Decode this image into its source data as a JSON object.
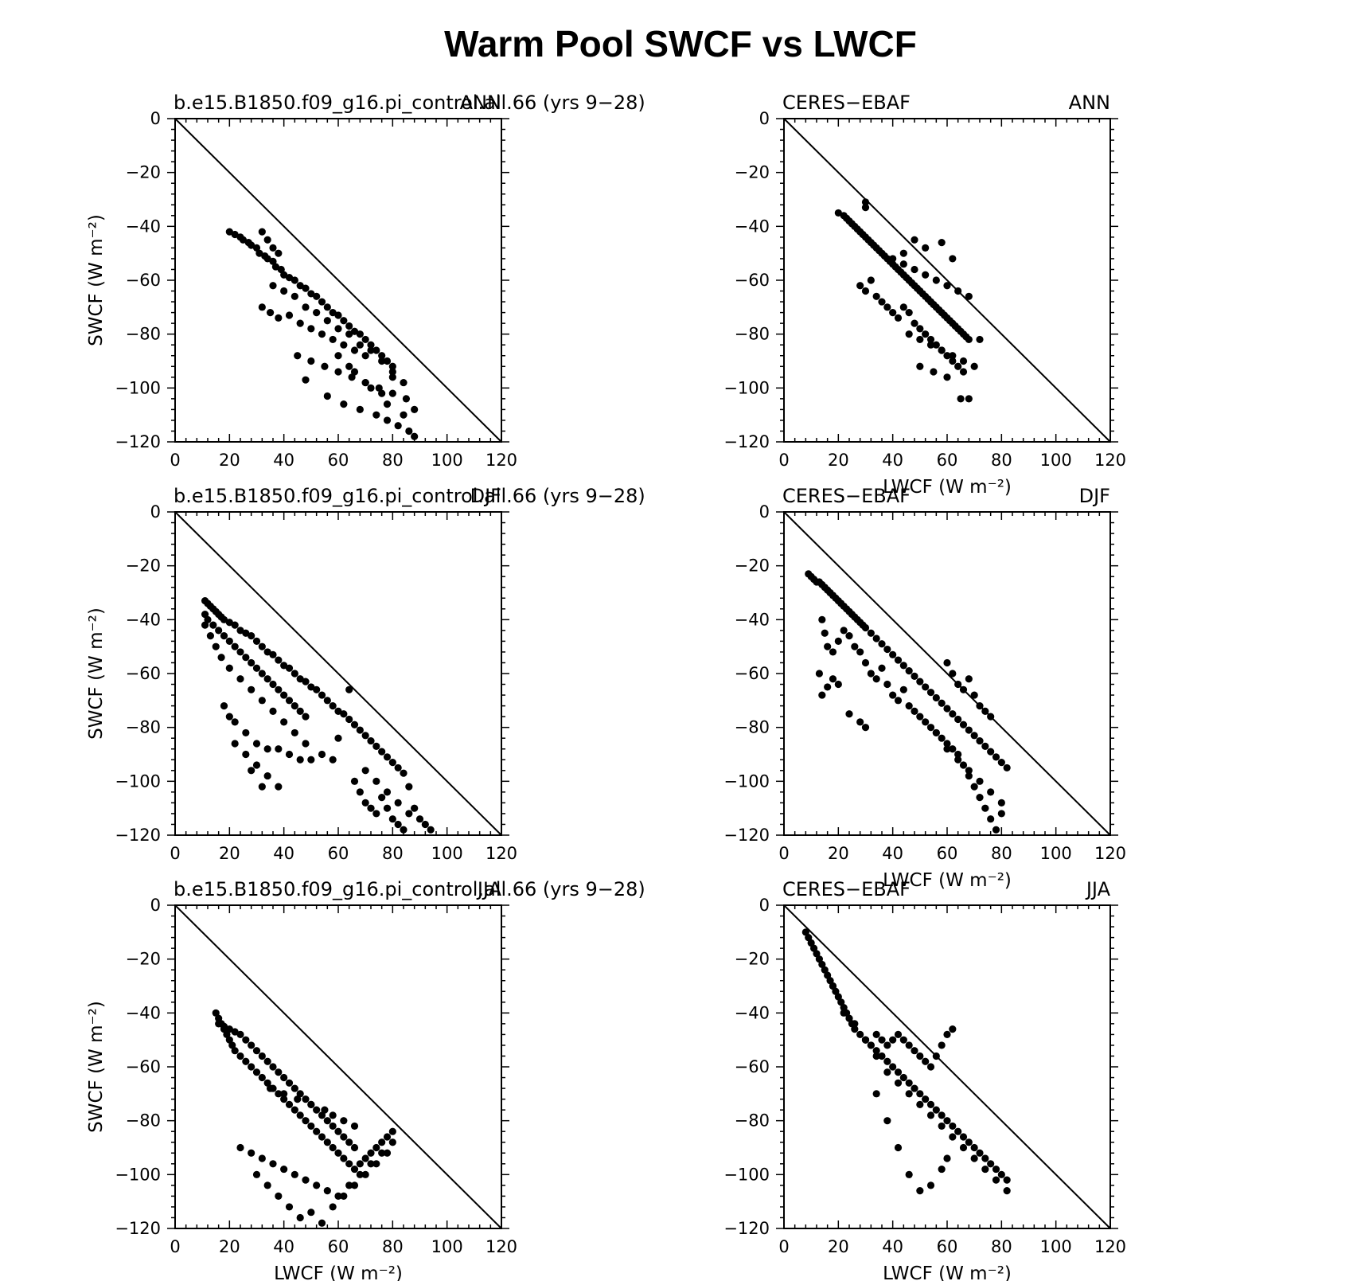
{
  "title": "Warm Pool SWCF vs LWCF",
  "colors": {
    "points": "#000000",
    "axes": "#000000",
    "background": "#ffffff"
  },
  "chart_data": [
    {
      "type": "scatter",
      "left_label": "b.e15.B1850.f09_g16.pi_control.all.66 (yrs 9−28)",
      "right_label": "ANN",
      "xlabel": "",
      "ylabel": "SWCF (W m⁻²)",
      "xlim": [
        0,
        120
      ],
      "ylim": [
        -120,
        0
      ],
      "xticks": [
        "0",
        "20",
        "40",
        "60",
        "80",
        "100",
        "120"
      ],
      "yticks": [
        "0",
        "−20",
        "−40",
        "−60",
        "−80",
        "−100",
        "−120"
      ],
      "reference_line": [
        [
          0,
          0
        ],
        [
          120,
          -120
        ]
      ],
      "x": [
        20,
        22,
        24,
        25,
        27,
        28,
        30,
        31,
        33,
        34,
        36,
        37,
        39,
        40,
        42,
        44,
        46,
        48,
        50,
        52,
        54,
        56,
        58,
        60,
        62,
        64,
        66,
        68,
        70,
        72,
        74,
        76,
        78,
        80,
        32,
        35,
        38,
        42,
        46,
        50,
        54,
        58,
        62,
        66,
        70,
        36,
        40,
        44,
        48,
        52,
        56,
        60,
        64,
        68,
        72,
        76,
        80,
        84,
        45,
        50,
        55,
        60,
        65,
        70,
        75,
        80,
        85,
        88,
        48,
        56,
        62,
        68,
        74,
        78,
        82,
        86,
        88,
        64,
        70,
        76,
        80,
        84,
        32,
        34,
        36,
        38,
        60,
        66,
        72,
        78
      ],
      "y": [
        -42,
        -43,
        -44,
        -45,
        -46,
        -47,
        -48,
        -50,
        -51,
        -52,
        -53,
        -55,
        -56,
        -58,
        -59,
        -60,
        -62,
        -63,
        -65,
        -66,
        -68,
        -70,
        -72,
        -73,
        -75,
        -77,
        -79,
        -80,
        -82,
        -84,
        -86,
        -88,
        -90,
        -92,
        -70,
        -72,
        -74,
        -73,
        -76,
        -78,
        -80,
        -82,
        -84,
        -86,
        -88,
        -62,
        -64,
        -66,
        -70,
        -72,
        -75,
        -78,
        -80,
        -84,
        -86,
        -90,
        -94,
        -98,
        -88,
        -90,
        -92,
        -94,
        -96,
        -98,
        -100,
        -102,
        -104,
        -108,
        -97,
        -103,
        -106,
        -108,
        -110,
        -112,
        -114,
        -116,
        -118,
        -92,
        -98,
        -102,
        -96,
        -110,
        -42,
        -45,
        -48,
        -50,
        -88,
        -94,
        -100,
        -106
      ]
    },
    {
      "type": "scatter",
      "left_label": "CERES−EBAF",
      "right_label": "ANN",
      "xlabel": "LWCF (W m⁻²)",
      "ylabel": "",
      "xlim": [
        0,
        120
      ],
      "ylim": [
        -120,
        0
      ],
      "xticks": [
        "0",
        "20",
        "40",
        "60",
        "80",
        "100",
        "120"
      ],
      "yticks": [
        "0",
        "−20",
        "−40",
        "−60",
        "−80",
        "−100",
        "−120"
      ],
      "reference_line": [
        [
          0,
          0
        ],
        [
          120,
          -120
        ]
      ],
      "x": [
        20,
        22,
        23,
        24,
        25,
        26,
        27,
        28,
        29,
        30,
        31,
        32,
        33,
        34,
        35,
        36,
        37,
        38,
        39,
        40,
        41,
        42,
        43,
        44,
        45,
        46,
        47,
        48,
        49,
        50,
        51,
        52,
        53,
        54,
        55,
        56,
        57,
        58,
        59,
        60,
        61,
        62,
        63,
        64,
        65,
        66,
        67,
        68,
        30,
        30,
        32,
        28,
        30,
        34,
        36,
        38,
        40,
        42,
        44,
        46,
        48,
        50,
        52,
        54,
        56,
        58,
        60,
        62,
        64,
        66,
        40,
        44,
        48,
        52,
        56,
        60,
        64,
        68,
        46,
        50,
        54,
        58,
        62,
        66,
        70,
        72,
        50,
        55,
        60,
        65,
        68,
        58,
        62,
        52,
        48,
        44
      ],
      "y": [
        -35,
        -36,
        -37,
        -38,
        -39,
        -40,
        -41,
        -42,
        -43,
        -44,
        -45,
        -46,
        -47,
        -48,
        -49,
        -50,
        -51,
        -52,
        -53,
        -54,
        -55,
        -56,
        -57,
        -58,
        -59,
        -60,
        -61,
        -62,
        -63,
        -64,
        -65,
        -66,
        -67,
        -68,
        -69,
        -70,
        -71,
        -72,
        -73,
        -74,
        -75,
        -76,
        -77,
        -78,
        -79,
        -80,
        -81,
        -82,
        -31,
        -33,
        -60,
        -62,
        -64,
        -66,
        -68,
        -70,
        -72,
        -74,
        -70,
        -72,
        -76,
        -78,
        -80,
        -82,
        -84,
        -86,
        -88,
        -90,
        -92,
        -94,
        -52,
        -54,
        -56,
        -58,
        -60,
        -62,
        -64,
        -66,
        -80,
        -82,
        -84,
        -86,
        -88,
        -90,
        -92,
        -82,
        -92,
        -94,
        -96,
        -104,
        -104,
        -46,
        -52,
        -48,
        -45,
        -50
      ]
    },
    {
      "type": "scatter",
      "left_label": "b.e15.B1850.f09_g16.pi_control.all.66 (yrs 9−28)",
      "right_label": "DJF",
      "xlabel": "",
      "ylabel": "SWCF (W m⁻²)",
      "xlim": [
        0,
        120
      ],
      "ylim": [
        -120,
        0
      ],
      "xticks": [
        "0",
        "20",
        "40",
        "60",
        "80",
        "100",
        "120"
      ],
      "yticks": [
        "0",
        "−20",
        "−40",
        "−60",
        "−80",
        "−100",
        "−120"
      ],
      "reference_line": [
        [
          0,
          0
        ],
        [
          120,
          -120
        ]
      ],
      "x": [
        11,
        12,
        13,
        14,
        15,
        16,
        17,
        18,
        20,
        22,
        24,
        26,
        28,
        30,
        32,
        34,
        36,
        38,
        40,
        42,
        44,
        46,
        48,
        50,
        52,
        54,
        56,
        58,
        60,
        62,
        64,
        66,
        68,
        70,
        72,
        74,
        76,
        78,
        80,
        82,
        84,
        11,
        12,
        14,
        16,
        18,
        20,
        22,
        24,
        26,
        28,
        30,
        32,
        34,
        36,
        38,
        40,
        42,
        44,
        46,
        48,
        11,
        13,
        15,
        17,
        20,
        24,
        28,
        32,
        36,
        40,
        44,
        48,
        18,
        22,
        26,
        30,
        34,
        38,
        42,
        46,
        50,
        54,
        58,
        22,
        26,
        30,
        34,
        38,
        66,
        68,
        70,
        72,
        74,
        76,
        78,
        80,
        82,
        84,
        86,
        88,
        90,
        92,
        94,
        70,
        74,
        78,
        82,
        86,
        20,
        28,
        32,
        60,
        64
      ],
      "y": [
        -33,
        -34,
        -35,
        -36,
        -37,
        -38,
        -39,
        -40,
        -41,
        -42,
        -44,
        -45,
        -46,
        -48,
        -50,
        -52,
        -53,
        -55,
        -57,
        -58,
        -60,
        -62,
        -63,
        -65,
        -66,
        -68,
        -70,
        -72,
        -74,
        -75,
        -77,
        -79,
        -81,
        -83,
        -85,
        -87,
        -89,
        -91,
        -93,
        -95,
        -97,
        -38,
        -40,
        -42,
        -44,
        -46,
        -48,
        -50,
        -52,
        -54,
        -56,
        -58,
        -60,
        -62,
        -64,
        -66,
        -68,
        -70,
        -72,
        -74,
        -76,
        -42,
        -46,
        -50,
        -54,
        -58,
        -62,
        -66,
        -70,
        -74,
        -78,
        -82,
        -86,
        -72,
        -78,
        -82,
        -86,
        -88,
        -88,
        -90,
        -92,
        -92,
        -90,
        -92,
        -86,
        -90,
        -94,
        -98,
        -102,
        -100,
        -104,
        -108,
        -110,
        -112,
        -106,
        -110,
        -114,
        -116,
        -118,
        -112,
        -110,
        -114,
        -116,
        -118,
        -96,
        -100,
        -104,
        -108,
        -102,
        -76,
        -96,
        -102,
        -84,
        -66
      ]
    },
    {
      "type": "scatter",
      "left_label": "CERES−EBAF",
      "right_label": "DJF",
      "xlabel": "LWCF (W m⁻²)",
      "ylabel": "",
      "xlim": [
        0,
        120
      ],
      "ylim": [
        -120,
        0
      ],
      "xticks": [
        "0",
        "20",
        "40",
        "60",
        "80",
        "100",
        "120"
      ],
      "yticks": [
        "0",
        "−20",
        "−40",
        "−60",
        "−80",
        "−100",
        "−120"
      ],
      "reference_line": [
        [
          0,
          0
        ],
        [
          120,
          -120
        ]
      ],
      "x": [
        9,
        10,
        11,
        12,
        13,
        14,
        15,
        16,
        17,
        18,
        19,
        20,
        21,
        22,
        23,
        24,
        25,
        26,
        27,
        28,
        29,
        30,
        32,
        34,
        36,
        38,
        40,
        42,
        44,
        46,
        48,
        50,
        52,
        54,
        56,
        58,
        60,
        62,
        64,
        66,
        68,
        70,
        72,
        74,
        76,
        78,
        80,
        82,
        14,
        15,
        16,
        18,
        20,
        22,
        24,
        26,
        28,
        30,
        32,
        34,
        36,
        38,
        40,
        42,
        44,
        46,
        48,
        50,
        52,
        54,
        56,
        58,
        60,
        62,
        64,
        66,
        68,
        70,
        72,
        74,
        76,
        78,
        80,
        13,
        14,
        16,
        18,
        20,
        24,
        28,
        30,
        60,
        62,
        64,
        66,
        68,
        70,
        72,
        74,
        76,
        56,
        60,
        64,
        68,
        72,
        76,
        80
      ],
      "y": [
        -23,
        -24,
        -25,
        -26,
        -26,
        -27,
        -28,
        -29,
        -30,
        -31,
        -32,
        -33,
        -34,
        -35,
        -36,
        -37,
        -38,
        -39,
        -40,
        -41,
        -42,
        -43,
        -45,
        -47,
        -49,
        -51,
        -53,
        -55,
        -57,
        -59,
        -61,
        -63,
        -65,
        -67,
        -69,
        -71,
        -73,
        -75,
        -77,
        -79,
        -81,
        -83,
        -85,
        -87,
        -89,
        -91,
        -93,
        -95,
        -40,
        -45,
        -50,
        -52,
        -48,
        -44,
        -46,
        -50,
        -52,
        -56,
        -60,
        -62,
        -58,
        -64,
        -68,
        -70,
        -66,
        -72,
        -74,
        -76,
        -78,
        -80,
        -82,
        -84,
        -86,
        -88,
        -90,
        -94,
        -98,
        -102,
        -106,
        -110,
        -114,
        -118,
        -112,
        -60,
        -68,
        -65,
        -62,
        -64,
        -75,
        -78,
        -80,
        -56,
        -60,
        -64,
        -66,
        -62,
        -68,
        -72,
        -74,
        -76,
        -82,
        -88,
        -92,
        -96,
        -100,
        -104,
        -108
      ]
    },
    {
      "type": "scatter",
      "left_label": "b.e15.B1850.f09_g16.pi_control.all.66 (yrs 9−28)",
      "right_label": "JJA",
      "xlabel": "LWCF (W m⁻²)",
      "ylabel": "SWCF (W m⁻²)",
      "xlim": [
        0,
        120
      ],
      "ylim": [
        -120,
        0
      ],
      "xticks": [
        "0",
        "20",
        "40",
        "60",
        "80",
        "100",
        "120"
      ],
      "yticks": [
        "0",
        "−20",
        "−40",
        "−60",
        "−80",
        "−100",
        "−120"
      ],
      "reference_line": [
        [
          0,
          0
        ],
        [
          120,
          -120
        ]
      ],
      "x": [
        15,
        16,
        17,
        18,
        19,
        20,
        21,
        22,
        24,
        26,
        28,
        30,
        32,
        34,
        36,
        38,
        40,
        42,
        44,
        46,
        48,
        50,
        52,
        54,
        56,
        58,
        60,
        62,
        64,
        66,
        68,
        70,
        72,
        74,
        76,
        78,
        80,
        16,
        18,
        20,
        22,
        24,
        26,
        28,
        30,
        32,
        34,
        36,
        38,
        40,
        42,
        44,
        46,
        48,
        50,
        52,
        54,
        56,
        58,
        60,
        62,
        64,
        66,
        24,
        28,
        32,
        36,
        40,
        44,
        48,
        52,
        56,
        60,
        64,
        68,
        72,
        76,
        80,
        30,
        34,
        38,
        42,
        46,
        50,
        54,
        58,
        62,
        66,
        70,
        74,
        78,
        35,
        40,
        45,
        50,
        55,
        58,
        62,
        66
      ],
      "y": [
        -40,
        -42,
        -44,
        -46,
        -48,
        -50,
        -52,
        -54,
        -56,
        -58,
        -60,
        -62,
        -64,
        -66,
        -68,
        -70,
        -72,
        -74,
        -76,
        -78,
        -80,
        -82,
        -84,
        -86,
        -88,
        -90,
        -92,
        -94,
        -96,
        -98,
        -96,
        -94,
        -92,
        -90,
        -88,
        -86,
        -84,
        -44,
        -45,
        -46,
        -47,
        -48,
        -50,
        -52,
        -54,
        -56,
        -58,
        -60,
        -62,
        -64,
        -66,
        -68,
        -70,
        -72,
        -74,
        -76,
        -78,
        -80,
        -82,
        -84,
        -86,
        -88,
        -90,
        -90,
        -92,
        -94,
        -96,
        -98,
        -100,
        -102,
        -104,
        -106,
        -108,
        -104,
        -100,
        -96,
        -92,
        -88,
        -100,
        -104,
        -108,
        -112,
        -116,
        -114,
        -118,
        -112,
        -108,
        -104,
        -100,
        -96,
        -92,
        -68,
        -70,
        -72,
        -74,
        -76,
        -78,
        -80,
        -82
      ]
    },
    {
      "type": "scatter",
      "left_label": "CERES−EBAF",
      "right_label": "JJA",
      "xlabel": "LWCF (W m⁻²)",
      "ylabel": "",
      "xlim": [
        0,
        120
      ],
      "ylim": [
        -120,
        0
      ],
      "xticks": [
        "0",
        "20",
        "40",
        "60",
        "80",
        "100",
        "120"
      ],
      "yticks": [
        "0",
        "−20",
        "−40",
        "−60",
        "−80",
        "−100",
        "−120"
      ],
      "reference_line": [
        [
          0,
          0
        ],
        [
          120,
          -120
        ]
      ],
      "x": [
        8,
        9,
        10,
        11,
        12,
        13,
        14,
        15,
        16,
        17,
        18,
        19,
        20,
        21,
        22,
        23,
        24,
        25,
        26,
        28,
        30,
        32,
        34,
        36,
        38,
        40,
        42,
        44,
        46,
        48,
        50,
        52,
        54,
        56,
        58,
        60,
        62,
        64,
        66,
        68,
        70,
        72,
        74,
        76,
        78,
        80,
        82,
        30,
        32,
        34,
        36,
        38,
        40,
        42,
        44,
        46,
        48,
        50,
        52,
        54,
        56,
        58,
        60,
        62,
        18,
        22,
        26,
        30,
        34,
        38,
        42,
        46,
        50,
        54,
        58,
        62,
        66,
        70,
        74,
        78,
        82,
        34,
        38,
        42,
        46,
        50,
        54,
        58,
        60
      ],
      "y": [
        -10,
        -12,
        -14,
        -16,
        -18,
        -20,
        -22,
        -24,
        -26,
        -28,
        -30,
        -32,
        -34,
        -36,
        -38,
        -40,
        -42,
        -44,
        -46,
        -48,
        -50,
        -52,
        -54,
        -56,
        -58,
        -60,
        -62,
        -64,
        -66,
        -68,
        -70,
        -72,
        -74,
        -76,
        -78,
        -80,
        -82,
        -84,
        -86,
        -88,
        -90,
        -92,
        -94,
        -96,
        -98,
        -100,
        -102,
        -50,
        -52,
        -48,
        -50,
        -52,
        -50,
        -48,
        -50,
        -52,
        -54,
        -56,
        -58,
        -60,
        -56,
        -52,
        -48,
        -46,
        -30,
        -40,
        -44,
        -50,
        -56,
        -62,
        -66,
        -70,
        -74,
        -78,
        -82,
        -86,
        -90,
        -94,
        -98,
        -102,
        -106,
        -70,
        -80,
        -90,
        -100,
        -106,
        -104,
        -98,
        -94
      ]
    }
  ]
}
